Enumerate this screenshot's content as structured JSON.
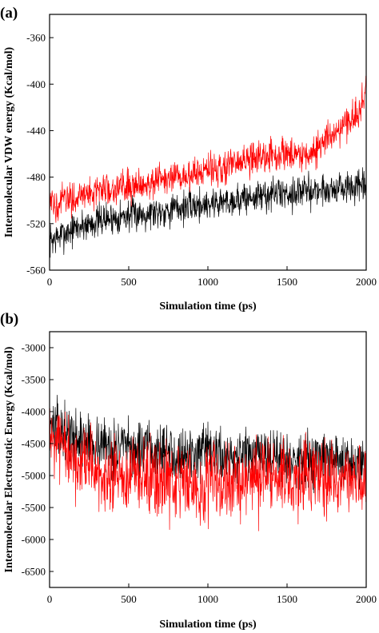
{
  "chart_data": [
    {
      "type": "line",
      "panel_label": "(a)",
      "title": "",
      "xlabel": "Simulation time (ps)",
      "ylabel": "Intermolecular VDW energy (Kcal/mol)",
      "xlim": [
        0,
        2000
      ],
      "ylim": [
        -560,
        -340
      ],
      "xticks": [
        0,
        500,
        1000,
        1500,
        2000
      ],
      "yticks": [
        -560,
        -520,
        -480,
        -440,
        -400,
        -360
      ],
      "xtick_labels": [
        "0",
        "500",
        "1000",
        "1500",
        "2000"
      ],
      "ytick_labels": [
        "-560",
        "-520",
        "-480",
        "-440",
        "-400",
        "-360"
      ],
      "grid": false,
      "legend": "none",
      "series": [
        {
          "color": "#000000",
          "x": [
            0,
            50,
            100,
            150,
            200,
            250,
            300,
            350,
            400,
            450,
            500,
            550,
            600,
            650,
            700,
            750,
            800,
            850,
            900,
            950,
            1000,
            1050,
            1100,
            1150,
            1200,
            1250,
            1300,
            1350,
            1400,
            1450,
            1500,
            1550,
            1600,
            1650,
            1700,
            1750,
            1800,
            1850,
            1900,
            1950,
            2000
          ],
          "y": [
            -535,
            -532,
            -528,
            -525,
            -522,
            -520,
            -518,
            -516,
            -515,
            -514,
            -513,
            -512,
            -511,
            -510,
            -509,
            -508,
            -507,
            -506,
            -505,
            -504,
            -503,
            -502,
            -501,
            -500,
            -499,
            -498,
            -497,
            -496,
            -495,
            -494,
            -494,
            -493,
            -492,
            -492,
            -491,
            -491,
            -490,
            -490,
            -489,
            -489,
            -489
          ],
          "noise": 10
        },
        {
          "color": "#ff0000",
          "x": [
            0,
            50,
            100,
            150,
            200,
            250,
            300,
            350,
            400,
            450,
            500,
            550,
            600,
            650,
            700,
            750,
            800,
            850,
            900,
            950,
            1000,
            1050,
            1100,
            1150,
            1200,
            1250,
            1300,
            1350,
            1400,
            1450,
            1500,
            1550,
            1600,
            1650,
            1700,
            1750,
            1800,
            1850,
            1900,
            1950,
            2000
          ],
          "y": [
            -505,
            -502,
            -500,
            -498,
            -496,
            -494,
            -492,
            -490,
            -489,
            -488,
            -487,
            -486,
            -485,
            -484,
            -483,
            -482,
            -481,
            -480,
            -478,
            -476,
            -474,
            -473,
            -471,
            -470,
            -468,
            -466,
            -464,
            -462,
            -461,
            -460,
            -460,
            -460,
            -460,
            -460,
            -455,
            -448,
            -440,
            -436,
            -432,
            -425,
            -405
          ],
          "noise": 10
        }
      ]
    },
    {
      "type": "line",
      "panel_label": "(b)",
      "title": "",
      "xlabel": "Simulation time (ps)",
      "ylabel": "Intermolecular Electrostatic Energy (Kcal/mol)",
      "xlim": [
        0,
        2000
      ],
      "ylim": [
        -6750,
        -2750
      ],
      "xticks": [
        0,
        500,
        1000,
        1500,
        2000
      ],
      "yticks": [
        -6500,
        -6000,
        -5500,
        -5000,
        -4500,
        -4000,
        -3500,
        -3000
      ],
      "xtick_labels": [
        "0",
        "500",
        "1000",
        "1500",
        "2000"
      ],
      "ytick_labels": [
        "-6500",
        "-6000",
        "-5500",
        "-5000",
        "-4500",
        "-4000",
        "-3500",
        "-3000"
      ],
      "grid": false,
      "legend": "none",
      "series": [
        {
          "color": "#000000",
          "x": [
            0,
            100,
            200,
            300,
            400,
            500,
            600,
            700,
            800,
            900,
            1000,
            1100,
            1200,
            1300,
            1400,
            1500,
            1600,
            1700,
            1800,
            1900,
            2000
          ],
          "y": [
            -4200,
            -4350,
            -4450,
            -4500,
            -4550,
            -4580,
            -4600,
            -4620,
            -4650,
            -4660,
            -4670,
            -4680,
            -4700,
            -4700,
            -4720,
            -4720,
            -4740,
            -4750,
            -4760,
            -4770,
            -4780
          ],
          "noise": 300
        },
        {
          "color": "#ff0000",
          "x": [
            0,
            100,
            200,
            300,
            400,
            500,
            600,
            700,
            800,
            900,
            1000,
            1100,
            1200,
            1300,
            1400,
            1500,
            1600,
            1700,
            1800,
            1900,
            2000
          ],
          "y": [
            -4300,
            -4700,
            -4900,
            -5000,
            -5050,
            -5050,
            -5080,
            -5100,
            -5100,
            -5100,
            -5080,
            -5080,
            -5080,
            -5050,
            -5050,
            -5050,
            -5030,
            -5030,
            -5020,
            -5000,
            -5000
          ],
          "noise": 420
        }
      ]
    }
  ]
}
